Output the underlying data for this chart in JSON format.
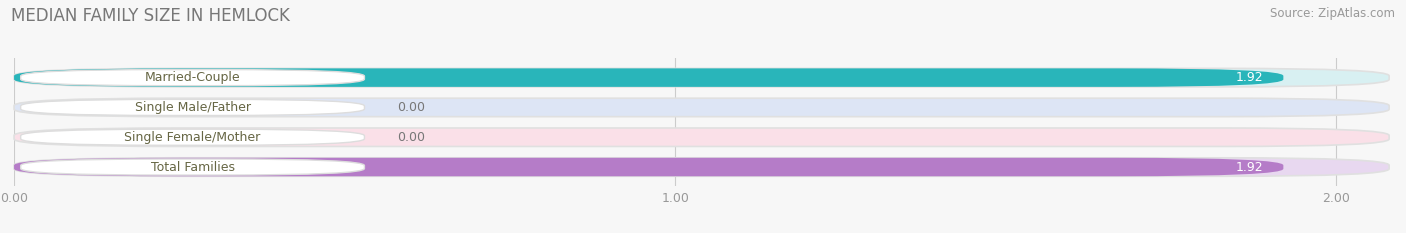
{
  "title": "MEDIAN FAMILY SIZE IN HEMLOCK",
  "source": "Source: ZipAtlas.com",
  "categories": [
    "Married-Couple",
    "Single Male/Father",
    "Single Female/Mother",
    "Total Families"
  ],
  "values": [
    1.92,
    0.0,
    0.0,
    1.92
  ],
  "bar_colors": [
    "#29b5ba",
    "#9ab0e8",
    "#f2a0b4",
    "#b57cc8"
  ],
  "bar_bg_colors": [
    "#d8f0f2",
    "#dde5f5",
    "#fae0e8",
    "#e8d8f0"
  ],
  "label_bg_colors": [
    "#ffffff",
    "#ffffff",
    "#ffffff",
    "#ffffff"
  ],
  "bar_label_text_colors": [
    "#888855",
    "#555577",
    "#557755",
    "#888855"
  ],
  "value_colors": [
    "white",
    "#777777",
    "#777777",
    "white"
  ],
  "background_color": "#f7f7f7",
  "xlim": [
    0,
    2.08
  ],
  "xticks": [
    0.0,
    1.0,
    2.0
  ],
  "xtick_labels": [
    "0.00",
    "1.00",
    "2.00"
  ],
  "bar_height": 0.62,
  "title_fontsize": 12,
  "label_fontsize": 9,
  "value_fontsize": 9,
  "tick_fontsize": 9,
  "source_fontsize": 8.5
}
